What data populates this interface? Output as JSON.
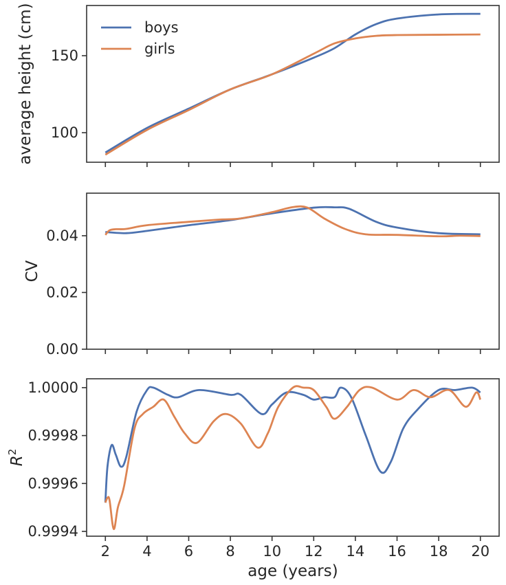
{
  "colors": {
    "boys": "#4c72b0",
    "girls": "#dd8452",
    "axis": "#333333"
  },
  "chart_data": [
    {
      "type": "line",
      "ylabel": "average height (cm)",
      "xlabel": "",
      "xlim": [
        1.1,
        20.9
      ],
      "ylim": [
        80.8,
        182.6
      ],
      "yticks": [
        100,
        150
      ],
      "ytick_labels": [
        "100",
        "150"
      ],
      "xticks": [
        2,
        4,
        6,
        8,
        10,
        12,
        14,
        16,
        18,
        20
      ],
      "legend": {
        "placement": "top-left",
        "entries": [
          "boys",
          "girls"
        ]
      },
      "series": [
        {
          "name": "boys",
          "x": [
            2,
            4,
            6,
            8,
            10,
            12,
            13,
            14,
            15,
            16,
            18,
            20
          ],
          "y": [
            87.1,
            103.1,
            115.6,
            128.1,
            137.9,
            148.7,
            154.9,
            163.8,
            170.5,
            174.1,
            176.8,
            177.2
          ]
        },
        {
          "name": "girls",
          "x": [
            2,
            4,
            6,
            8,
            10,
            12,
            13,
            14,
            15,
            16,
            18,
            20
          ],
          "y": [
            85.7,
            101.8,
            114.7,
            128.1,
            137.9,
            151.3,
            158.0,
            161.2,
            162.9,
            163.4,
            163.6,
            163.8
          ]
        }
      ]
    },
    {
      "type": "line",
      "ylabel": "CV",
      "xlabel": "",
      "xlim": [
        1.1,
        20.9
      ],
      "ylim": [
        0,
        0.055
      ],
      "yticks": [
        0,
        0.02,
        0.04
      ],
      "ytick_labels": [
        "0.00",
        "0.02",
        "0.04"
      ],
      "xticks": [
        2,
        4,
        6,
        8,
        10,
        12,
        14,
        16,
        18,
        20
      ],
      "series": [
        {
          "name": "boys",
          "x": [
            2,
            3,
            4,
            6,
            8,
            10,
            12,
            13,
            13.7,
            15,
            16,
            18,
            20
          ],
          "y": [
            0.0413,
            0.0409,
            0.0417,
            0.0437,
            0.0455,
            0.0479,
            0.0499,
            0.05,
            0.0495,
            0.0449,
            0.0429,
            0.0409,
            0.0405
          ]
        },
        {
          "name": "girls",
          "x": [
            2,
            2.2,
            2.5,
            3,
            4,
            6,
            7.5,
            8.5,
            10,
            11,
            11.7,
            12.5,
            13.5,
            14.5,
            16,
            18,
            19,
            20
          ],
          "y": [
            0.0403,
            0.0419,
            0.0423,
            0.0424,
            0.0437,
            0.0449,
            0.0457,
            0.0461,
            0.0483,
            0.0501,
            0.0499,
            0.0461,
            0.0424,
            0.0405,
            0.0403,
            0.0398,
            0.04,
            0.0399
          ]
        }
      ]
    },
    {
      "type": "line",
      "ylabel_base": "R",
      "ylabel_sup": "2",
      "xlabel": "age (years)",
      "xlim": [
        1.1,
        20.9
      ],
      "ylim": [
        0.99938,
        1.000037
      ],
      "yticks": [
        0.9994,
        0.9996,
        0.9998,
        1.0
      ],
      "ytick_labels": [
        "0.9994",
        "0.9996",
        "0.9998",
        "1.0000"
      ],
      "xticks": [
        2,
        4,
        6,
        8,
        10,
        12,
        14,
        16,
        18,
        20
      ],
      "xtick_labels": [
        "2",
        "4",
        "6",
        "8",
        "10",
        "12",
        "14",
        "16",
        "18",
        "20"
      ],
      "series": [
        {
          "name": "boys",
          "x": [
            2,
            2.1,
            2.3,
            2.5,
            2.75,
            3,
            3.5,
            4,
            4.3,
            5,
            5.5,
            6.5,
            8,
            8.5,
            9.5,
            10,
            10.7,
            11.5,
            12,
            12.5,
            13,
            13.3,
            13.8,
            14.5,
            15.2,
            15.7,
            16.3,
            17,
            18,
            18.8,
            19.6,
            20
          ],
          "y": [
            0.99952,
            0.99967,
            0.99976,
            0.99972,
            0.99967,
            0.99971,
            0.9999,
            0.99999,
            1.0,
            0.99997,
            0.99996,
            0.99999,
            0.99997,
            0.99997,
            0.99989,
            0.99993,
            0.99998,
            0.99997,
            0.99995,
            0.99996,
            0.99996,
            1.0,
            0.99996,
            0.9998,
            0.99965,
            0.99969,
            0.99983,
            0.99991,
            0.99999,
            0.99999,
            1.0,
            0.99998
          ]
        },
        {
          "name": "girls",
          "x": [
            2,
            2.1,
            2.2,
            2.4,
            2.6,
            2.9,
            3.4,
            3.8,
            4.3,
            4.8,
            5.3,
            5.8,
            6.4,
            7.2,
            7.8,
            8.5,
            9.3,
            9.8,
            10.3,
            11,
            11.5,
            12,
            12.6,
            13,
            13.6,
            14.2,
            14.8,
            16,
            16.8,
            17.6,
            18.5,
            19.3,
            19.8,
            20
          ],
          "y": [
            0.99952,
            0.99954,
            0.99953,
            0.99941,
            0.9995,
            0.99959,
            0.99983,
            0.99989,
            0.99992,
            0.99995,
            0.99988,
            0.99981,
            0.99977,
            0.99986,
            0.99989,
            0.99985,
            0.99975,
            0.99981,
            0.99992,
            1.0,
            1.0,
            0.99999,
            0.99992,
            0.99987,
            0.99992,
            0.99999,
            1.0,
            0.99995,
            0.99999,
            0.99996,
            0.99999,
            0.99992,
            0.99998,
            0.99995
          ]
        }
      ]
    }
  ]
}
